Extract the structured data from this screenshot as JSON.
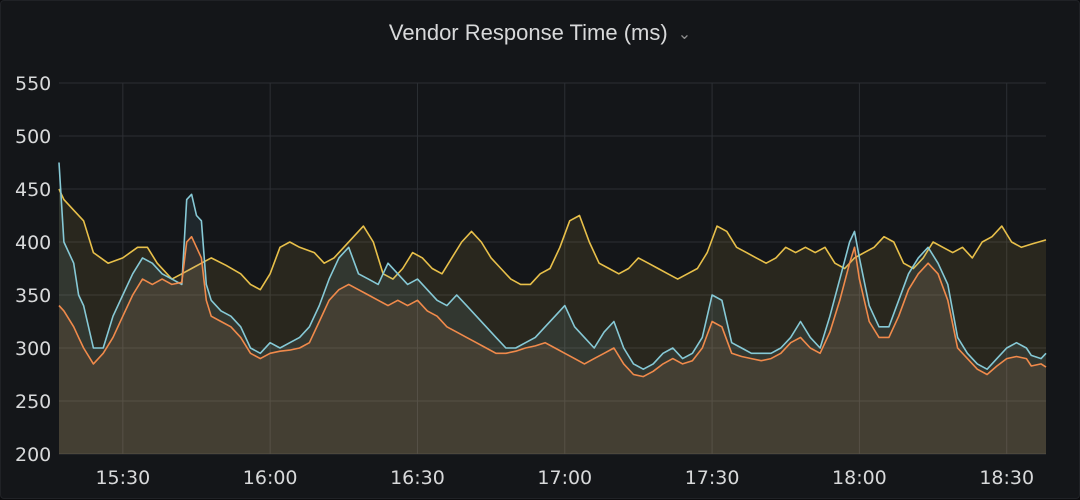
{
  "panel": {
    "title": "Vendor Response Time (ms)",
    "menu_icon": "chevron-down-icon"
  },
  "colors": {
    "background": "#141619",
    "grid": "#2c2f34",
    "yellow": "#e8c04a",
    "cyan": "#86c9d6",
    "orange": "#f08a4b"
  },
  "chart_data": {
    "type": "area",
    "title": "Vendor Response Time (ms)",
    "xlabel": "",
    "ylabel": "",
    "x_ticks": [
      "15:30",
      "16:00",
      "16:30",
      "17:00",
      "17:30",
      "18:00",
      "18:30"
    ],
    "y_ticks": [
      200,
      250,
      300,
      350,
      400,
      450,
      500,
      550
    ],
    "ylim": [
      200,
      550
    ],
    "xlim_minutes_from_1530": [
      -13,
      188
    ],
    "grid": true,
    "series": [
      {
        "color": "#e8c04a",
        "points": [
          [
            -13,
            450
          ],
          [
            -12,
            440
          ],
          [
            -10,
            430
          ],
          [
            -8,
            420
          ],
          [
            -6,
            390
          ],
          [
            -3,
            380
          ],
          [
            0,
            385
          ],
          [
            3,
            395
          ],
          [
            5,
            395
          ],
          [
            7,
            380
          ],
          [
            9,
            370
          ],
          [
            10,
            365
          ],
          [
            12,
            370
          ],
          [
            14,
            375
          ],
          [
            16,
            380
          ],
          [
            18,
            385
          ],
          [
            21,
            378
          ],
          [
            24,
            370
          ],
          [
            26,
            360
          ],
          [
            28,
            355
          ],
          [
            30,
            370
          ],
          [
            32,
            395
          ],
          [
            34,
            400
          ],
          [
            36,
            395
          ],
          [
            39,
            390
          ],
          [
            41,
            380
          ],
          [
            43,
            385
          ],
          [
            45,
            395
          ],
          [
            47,
            405
          ],
          [
            49,
            415
          ],
          [
            51,
            400
          ],
          [
            53,
            370
          ],
          [
            55,
            365
          ],
          [
            57,
            375
          ],
          [
            59,
            390
          ],
          [
            61,
            385
          ],
          [
            63,
            375
          ],
          [
            65,
            370
          ],
          [
            67,
            385
          ],
          [
            69,
            400
          ],
          [
            71,
            410
          ],
          [
            73,
            400
          ],
          [
            75,
            385
          ],
          [
            77,
            375
          ],
          [
            79,
            365
          ],
          [
            81,
            360
          ],
          [
            83,
            360
          ],
          [
            85,
            370
          ],
          [
            87,
            375
          ],
          [
            89,
            395
          ],
          [
            91,
            420
          ],
          [
            93,
            425
          ],
          [
            95,
            400
          ],
          [
            97,
            380
          ],
          [
            99,
            375
          ],
          [
            101,
            370
          ],
          [
            103,
            375
          ],
          [
            105,
            385
          ],
          [
            107,
            380
          ],
          [
            109,
            375
          ],
          [
            111,
            370
          ],
          [
            113,
            365
          ],
          [
            115,
            370
          ],
          [
            117,
            375
          ],
          [
            119,
            390
          ],
          [
            121,
            415
          ],
          [
            123,
            410
          ],
          [
            125,
            395
          ],
          [
            127,
            390
          ],
          [
            129,
            385
          ],
          [
            131,
            380
          ],
          [
            133,
            385
          ],
          [
            135,
            395
          ],
          [
            137,
            390
          ],
          [
            139,
            395
          ],
          [
            141,
            390
          ],
          [
            143,
            395
          ],
          [
            145,
            380
          ],
          [
            147,
            375
          ],
          [
            149,
            385
          ],
          [
            151,
            390
          ],
          [
            153,
            395
          ],
          [
            155,
            405
          ],
          [
            157,
            400
          ],
          [
            159,
            380
          ],
          [
            161,
            375
          ],
          [
            163,
            385
          ],
          [
            165,
            400
          ],
          [
            167,
            395
          ],
          [
            169,
            390
          ],
          [
            171,
            395
          ],
          [
            173,
            385
          ],
          [
            175,
            400
          ],
          [
            177,
            405
          ],
          [
            179,
            415
          ],
          [
            181,
            400
          ],
          [
            183,
            395
          ],
          [
            185,
            398
          ],
          [
            188,
            402
          ]
        ]
      },
      {
        "color": "#86c9d6",
        "points": [
          [
            -13,
            475
          ],
          [
            -12,
            400
          ],
          [
            -10,
            380
          ],
          [
            -9,
            350
          ],
          [
            -8,
            340
          ],
          [
            -6,
            300
          ],
          [
            -4,
            300
          ],
          [
            -2,
            330
          ],
          [
            0,
            350
          ],
          [
            2,
            370
          ],
          [
            4,
            385
          ],
          [
            6,
            380
          ],
          [
            8,
            370
          ],
          [
            10,
            365
          ],
          [
            12,
            360
          ],
          [
            13,
            440
          ],
          [
            14,
            445
          ],
          [
            15,
            425
          ],
          [
            16,
            420
          ],
          [
            17,
            360
          ],
          [
            18,
            345
          ],
          [
            20,
            335
          ],
          [
            22,
            330
          ],
          [
            24,
            320
          ],
          [
            26,
            300
          ],
          [
            28,
            295
          ],
          [
            30,
            305
          ],
          [
            32,
            300
          ],
          [
            34,
            305
          ],
          [
            36,
            310
          ],
          [
            38,
            320
          ],
          [
            40,
            340
          ],
          [
            42,
            365
          ],
          [
            44,
            385
          ],
          [
            46,
            395
          ],
          [
            48,
            370
          ],
          [
            50,
            365
          ],
          [
            52,
            360
          ],
          [
            54,
            380
          ],
          [
            56,
            370
          ],
          [
            58,
            360
          ],
          [
            60,
            365
          ],
          [
            62,
            355
          ],
          [
            64,
            345
          ],
          [
            66,
            340
          ],
          [
            68,
            350
          ],
          [
            70,
            340
          ],
          [
            72,
            330
          ],
          [
            74,
            320
          ],
          [
            76,
            310
          ],
          [
            78,
            300
          ],
          [
            80,
            300
          ],
          [
            82,
            305
          ],
          [
            84,
            310
          ],
          [
            86,
            320
          ],
          [
            88,
            330
          ],
          [
            90,
            340
          ],
          [
            92,
            320
          ],
          [
            94,
            310
          ],
          [
            96,
            300
          ],
          [
            98,
            315
          ],
          [
            100,
            325
          ],
          [
            102,
            300
          ],
          [
            104,
            285
          ],
          [
            106,
            280
          ],
          [
            108,
            285
          ],
          [
            110,
            295
          ],
          [
            112,
            300
          ],
          [
            114,
            290
          ],
          [
            116,
            295
          ],
          [
            118,
            310
          ],
          [
            120,
            350
          ],
          [
            122,
            345
          ],
          [
            124,
            305
          ],
          [
            126,
            300
          ],
          [
            128,
            295
          ],
          [
            130,
            295
          ],
          [
            132,
            295
          ],
          [
            134,
            300
          ],
          [
            136,
            310
          ],
          [
            138,
            325
          ],
          [
            140,
            310
          ],
          [
            142,
            300
          ],
          [
            144,
            330
          ],
          [
            146,
            365
          ],
          [
            148,
            400
          ],
          [
            149,
            410
          ],
          [
            150,
            385
          ],
          [
            152,
            340
          ],
          [
            154,
            320
          ],
          [
            156,
            320
          ],
          [
            158,
            345
          ],
          [
            160,
            370
          ],
          [
            162,
            385
          ],
          [
            164,
            395
          ],
          [
            166,
            380
          ],
          [
            168,
            360
          ],
          [
            170,
            310
          ],
          [
            172,
            295
          ],
          [
            174,
            285
          ],
          [
            176,
            280
          ],
          [
            178,
            290
          ],
          [
            180,
            300
          ],
          [
            182,
            305
          ],
          [
            184,
            300
          ],
          [
            185,
            293
          ],
          [
            187,
            290
          ],
          [
            188,
            295
          ]
        ]
      },
      {
        "color": "#f08a4b",
        "points": [
          [
            -13,
            340
          ],
          [
            -12,
            335
          ],
          [
            -10,
            320
          ],
          [
            -9,
            310
          ],
          [
            -8,
            300
          ],
          [
            -6,
            285
          ],
          [
            -4,
            295
          ],
          [
            -2,
            310
          ],
          [
            0,
            330
          ],
          [
            2,
            350
          ],
          [
            4,
            365
          ],
          [
            6,
            360
          ],
          [
            8,
            365
          ],
          [
            10,
            360
          ],
          [
            12,
            362
          ],
          [
            13,
            400
          ],
          [
            14,
            405
          ],
          [
            15,
            395
          ],
          [
            16,
            385
          ],
          [
            17,
            345
          ],
          [
            18,
            330
          ],
          [
            20,
            325
          ],
          [
            22,
            320
          ],
          [
            24,
            310
          ],
          [
            26,
            295
          ],
          [
            28,
            290
          ],
          [
            30,
            295
          ],
          [
            32,
            297
          ],
          [
            34,
            298
          ],
          [
            36,
            300
          ],
          [
            38,
            305
          ],
          [
            40,
            325
          ],
          [
            42,
            345
          ],
          [
            44,
            355
          ],
          [
            46,
            360
          ],
          [
            48,
            355
          ],
          [
            50,
            350
          ],
          [
            52,
            345
          ],
          [
            54,
            340
          ],
          [
            56,
            345
          ],
          [
            58,
            340
          ],
          [
            60,
            345
          ],
          [
            62,
            335
          ],
          [
            64,
            330
          ],
          [
            66,
            320
          ],
          [
            68,
            315
          ],
          [
            70,
            310
          ],
          [
            72,
            305
          ],
          [
            74,
            300
          ],
          [
            76,
            295
          ],
          [
            78,
            295
          ],
          [
            80,
            297
          ],
          [
            82,
            300
          ],
          [
            84,
            302
          ],
          [
            86,
            305
          ],
          [
            88,
            300
          ],
          [
            90,
            295
          ],
          [
            92,
            290
          ],
          [
            94,
            285
          ],
          [
            96,
            290
          ],
          [
            98,
            295
          ],
          [
            100,
            300
          ],
          [
            102,
            285
          ],
          [
            104,
            275
          ],
          [
            106,
            273
          ],
          [
            108,
            278
          ],
          [
            110,
            285
          ],
          [
            112,
            290
          ],
          [
            114,
            285
          ],
          [
            116,
            288
          ],
          [
            118,
            300
          ],
          [
            120,
            325
          ],
          [
            122,
            320
          ],
          [
            124,
            295
          ],
          [
            126,
            292
          ],
          [
            128,
            290
          ],
          [
            130,
            288
          ],
          [
            132,
            290
          ],
          [
            134,
            295
          ],
          [
            136,
            305
          ],
          [
            138,
            310
          ],
          [
            140,
            300
          ],
          [
            142,
            295
          ],
          [
            144,
            315
          ],
          [
            146,
            345
          ],
          [
            148,
            380
          ],
          [
            149,
            395
          ],
          [
            150,
            365
          ],
          [
            152,
            325
          ],
          [
            154,
            310
          ],
          [
            156,
            310
          ],
          [
            158,
            330
          ],
          [
            160,
            355
          ],
          [
            162,
            370
          ],
          [
            164,
            380
          ],
          [
            166,
            370
          ],
          [
            168,
            345
          ],
          [
            170,
            300
          ],
          [
            172,
            290
          ],
          [
            174,
            280
          ],
          [
            176,
            275
          ],
          [
            178,
            283
          ],
          [
            180,
            290
          ],
          [
            182,
            292
          ],
          [
            184,
            290
          ],
          [
            185,
            283
          ],
          [
            187,
            285
          ],
          [
            188,
            282
          ]
        ]
      }
    ]
  }
}
